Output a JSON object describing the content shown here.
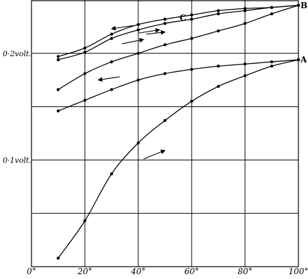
{
  "chart_data": {
    "type": "line",
    "title": "",
    "xlabel": "",
    "ylabel": "",
    "xlim": [
      0,
      100
    ],
    "ylim": [
      0,
      0.25
    ],
    "grid": true,
    "x_ticks": [
      {
        "value": 0,
        "label": "0°"
      },
      {
        "value": 20,
        "label": "20°"
      },
      {
        "value": 40,
        "label": "40°"
      },
      {
        "value": 60,
        "label": "60°"
      },
      {
        "value": 80,
        "label": "80°"
      },
      {
        "value": 100,
        "label": "100°"
      }
    ],
    "y_ticks": [
      {
        "value": 0.1,
        "label": "0·1volt."
      },
      {
        "value": 0.2,
        "label": "0·2volt."
      }
    ],
    "series": [
      {
        "name": "B",
        "x": [
          10,
          20,
          30,
          40,
          50,
          60,
          70,
          80,
          90,
          100
        ],
        "y": [
          0.194,
          0.201,
          0.214,
          0.222,
          0.228,
          0.232,
          0.237,
          0.24,
          0.243,
          0.245
        ]
      },
      {
        "name": "C",
        "x": [
          10,
          20,
          30,
          40,
          50,
          60,
          70,
          80,
          90,
          100
        ],
        "y": [
          0.197,
          0.205,
          0.218,
          0.227,
          0.232,
          0.236,
          0.24,
          0.242,
          0.243,
          0.245
        ]
      },
      {
        "name": "",
        "x": [
          10,
          20,
          30,
          40,
          50,
          60,
          70,
          80,
          90,
          100
        ],
        "y": [
          0.166,
          0.181,
          0.192,
          0.2,
          0.208,
          0.214,
          0.221,
          0.228,
          0.237,
          0.245
        ]
      },
      {
        "name": "A",
        "x": [
          10,
          20,
          30,
          40,
          50,
          60,
          70,
          80,
          90,
          100
        ],
        "y": [
          0.146,
          0.156,
          0.166,
          0.175,
          0.181,
          0.185,
          0.188,
          0.19,
          0.192,
          0.194
        ]
      },
      {
        "name": "",
        "x": [
          10,
          20,
          30,
          40,
          50,
          60,
          70,
          80,
          90,
          100
        ],
        "y": [
          0.008,
          0.043,
          0.087,
          0.116,
          0.137,
          0.155,
          0.169,
          0.179,
          0.188,
          0.194
        ]
      }
    ]
  }
}
